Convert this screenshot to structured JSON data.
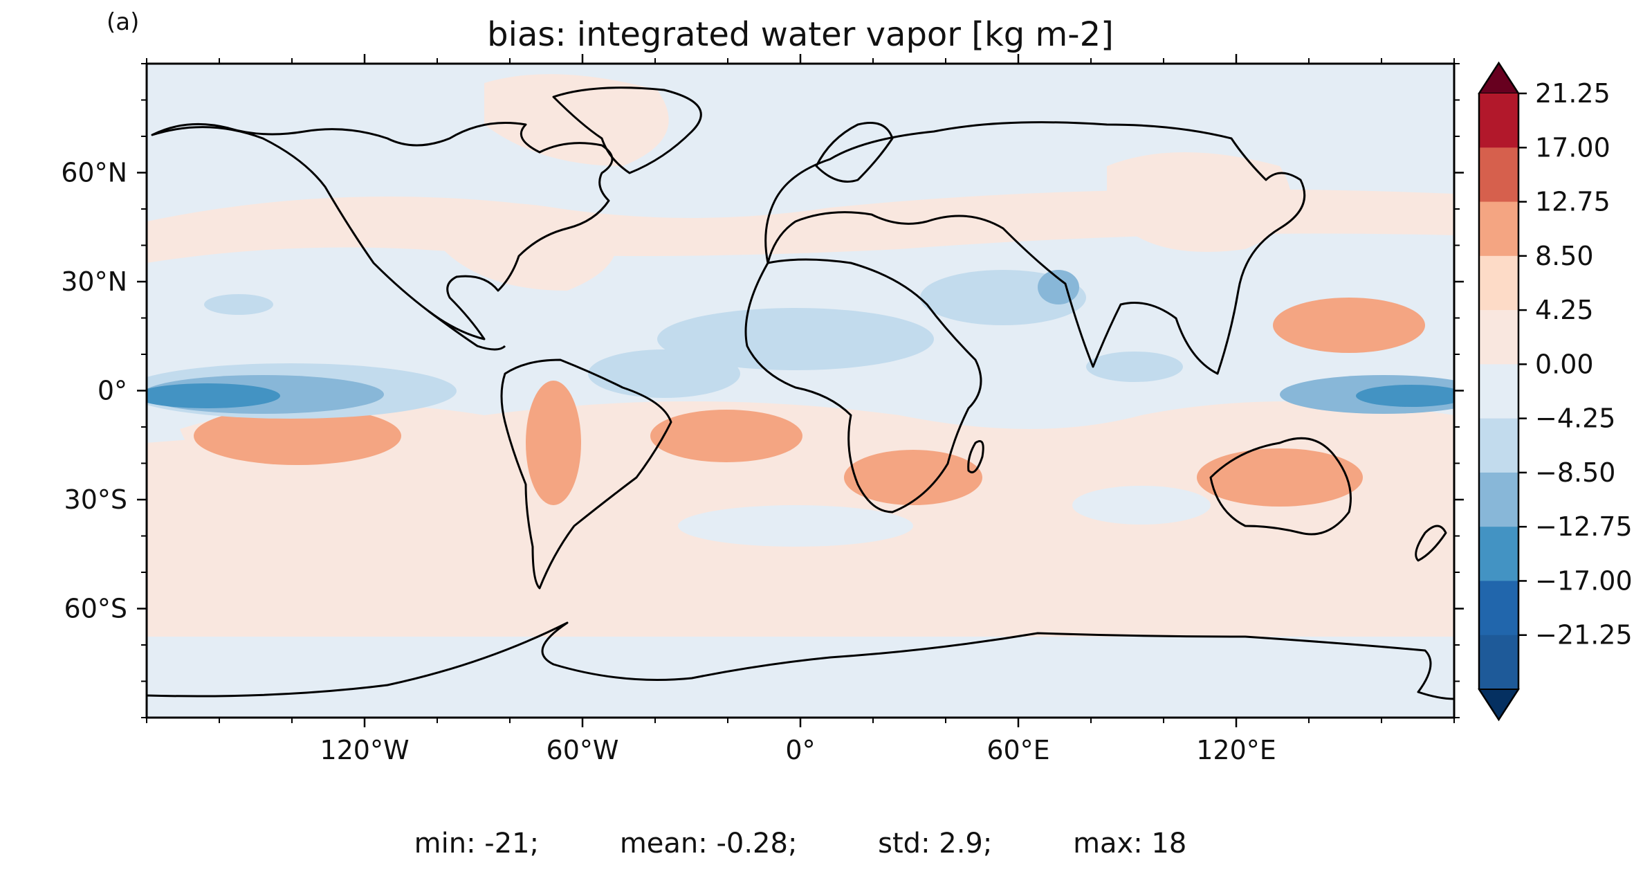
{
  "figure": {
    "panel_label": "(a)",
    "title": "bias: integrated water vapor [kg m-2]"
  },
  "map": {
    "projection": "PlateCarree",
    "extent_lon": [
      -180,
      180
    ],
    "extent_lat": [
      -90,
      90
    ],
    "x_ticks": [
      {
        "lon": -120,
        "label": "120°W"
      },
      {
        "lon": -60,
        "label": "60°W"
      },
      {
        "lon": 0,
        "label": "0°"
      },
      {
        "lon": 60,
        "label": "60°E"
      },
      {
        "lon": 120,
        "label": "120°E"
      }
    ],
    "y_ticks": [
      {
        "lat": 60,
        "label": "60°N"
      },
      {
        "lat": 30,
        "label": "30°N"
      },
      {
        "lat": 0,
        "label": "0°"
      },
      {
        "lat": -30,
        "label": "30°S"
      },
      {
        "lat": -60,
        "label": "60°S"
      }
    ],
    "background_color": "#e4edf5"
  },
  "colorbar": {
    "extend": "both",
    "tick_labels": [
      "21.25",
      "17.00",
      "12.75",
      "8.50",
      "4.25",
      "0.00",
      "−4.25",
      "−8.50",
      "−12.75",
      "−17.00",
      "−21.25"
    ],
    "colors_top_to_bottom": [
      "#67001f",
      "#b2182b",
      "#d6604d",
      "#f4a582",
      "#fddbc7",
      "#f9e7df",
      "#e4edf5",
      "#c2dbed",
      "#88b7d8",
      "#4393c3",
      "#2166ac",
      "#1e5a99",
      "#053061"
    ]
  },
  "stats": {
    "min": "min: -21;",
    "mean": "mean: -0.28;",
    "std": "std: 2.9;",
    "max": "max: 18"
  }
}
